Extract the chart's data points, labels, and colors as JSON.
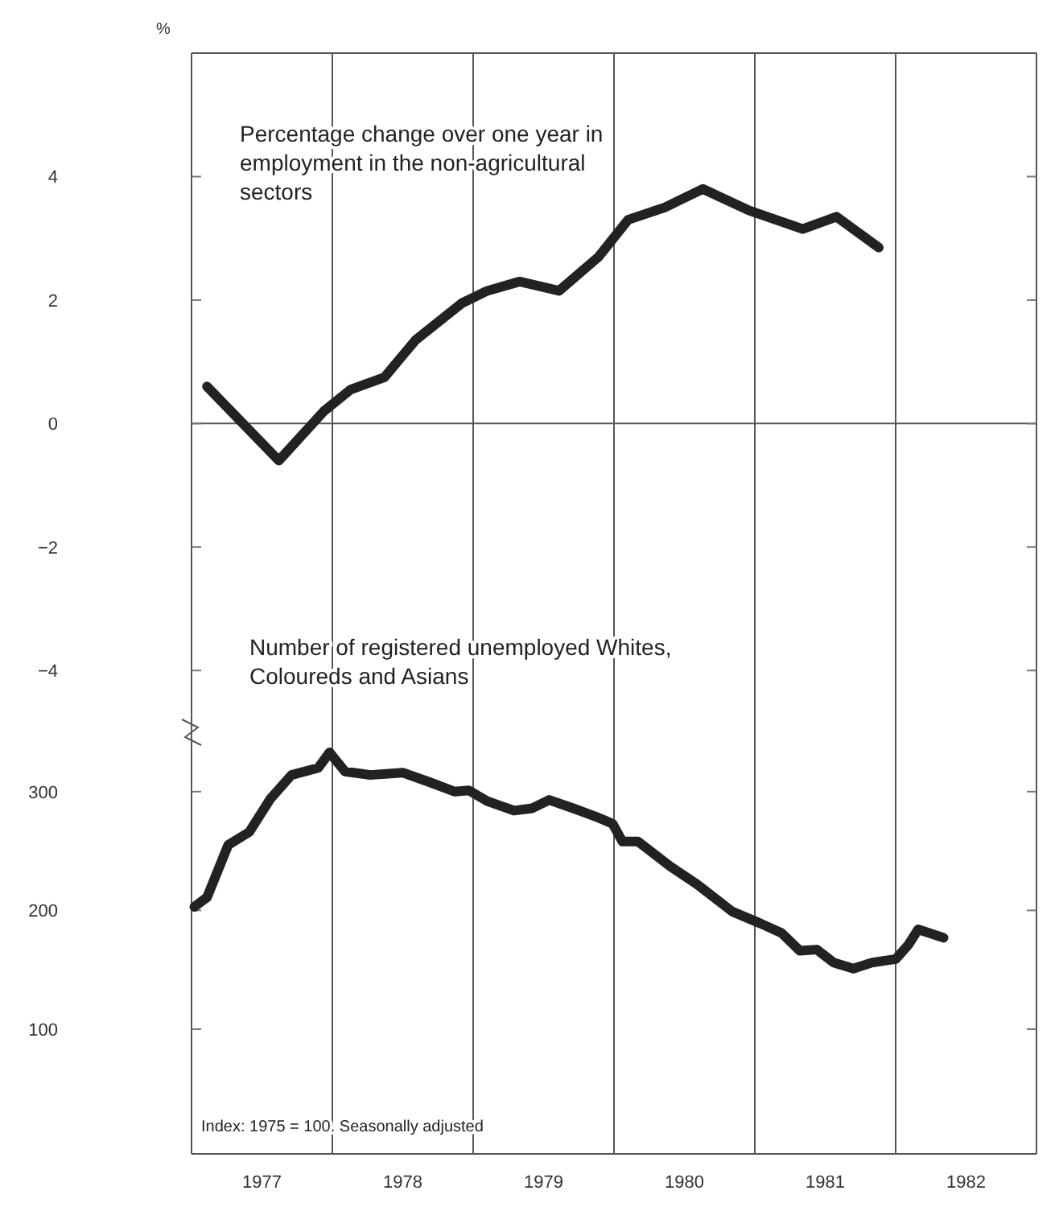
{
  "chart_data": [
    {
      "type": "line",
      "title": "Percentage change over one year in employment in the non-agricultural sectors",
      "ylabel": "%",
      "xlim": [
        1977,
        1983
      ],
      "ylim": [
        -5,
        6
      ],
      "yticks": [
        4,
        2,
        0,
        {
          "value": -2,
          "label": "−2"
        },
        {
          "value": -4,
          "label": "−4"
        }
      ],
      "tick_labels": "y",
      "grid": false,
      "ref_lines": [
        {
          "axis": "y",
          "value": 0
        },
        {
          "axis": "x",
          "value": 1978
        },
        {
          "axis": "x",
          "value": 1979
        },
        {
          "axis": "x",
          "value": 1980
        },
        {
          "axis": "x",
          "value": 1981
        },
        {
          "axis": "x",
          "value": 1982
        }
      ],
      "series": [
        {
          "color": "#222222",
          "x": [
            1977.11,
            1977.62,
            1977.94,
            1978.13,
            1978.37,
            1978.59,
            1978.92,
            1979.1,
            1979.33,
            1979.61,
            1979.89,
            1980.1,
            1980.36,
            1980.63,
            1980.96,
            1981.34,
            1981.58,
            1981.88
          ],
          "values": [
            0.6,
            -0.6,
            0.2,
            0.55,
            0.75,
            1.35,
            1.95,
            2.15,
            2.3,
            2.15,
            2.7,
            3.3,
            3.5,
            3.8,
            3.45,
            3.15,
            3.35,
            2.85
          ]
        }
      ]
    },
    {
      "type": "line",
      "title": "Number of registered unemployed Whites, Coloureds and Asians",
      "annotations": [
        "Index: 1975 = 100. Seasonally adjusted"
      ],
      "xlim": [
        1977,
        1983
      ],
      "xticks": [
        {
          "value": 1977.5,
          "label": "1977"
        },
        {
          "value": 1978.5,
          "label": "1978"
        },
        {
          "value": 1979.5,
          "label": "1979"
        },
        {
          "value": 1980.5,
          "label": "1980"
        },
        {
          "value": 1981.5,
          "label": "1981"
        },
        {
          "value": 1982.5,
          "label": "1982"
        }
      ],
      "ylim": [
        -5,
        350
      ],
      "yticks": [
        300,
        200,
        100
      ],
      "grid": false,
      "ref_lines": [
        {
          "axis": "x",
          "value": 1978
        },
        {
          "axis": "x",
          "value": 1979
        },
        {
          "axis": "x",
          "value": 1980
        },
        {
          "axis": "x",
          "value": 1981
        },
        {
          "axis": "x",
          "value": 1982
        }
      ],
      "series": [
        {
          "color": "#222222",
          "x": [
            1977.02,
            1977.11,
            1977.26,
            1977.41,
            1977.56,
            1977.71,
            1977.9,
            1977.98,
            1978.09,
            1978.27,
            1978.5,
            1978.69,
            1978.87,
            1978.97,
            1979.1,
            1979.29,
            1979.42,
            1979.54,
            1979.71,
            1979.87,
            1979.99,
            1980.06,
            1980.17,
            1980.4,
            1980.59,
            1980.84,
            1981.04,
            1981.19,
            1981.32,
            1981.44,
            1981.56,
            1981.7,
            1981.83,
            1982.0,
            1982.09,
            1982.16,
            1982.34
          ],
          "values": [
            203,
            211,
            255,
            266,
            294,
            314,
            320,
            333,
            317,
            314,
            316,
            308,
            300,
            301,
            292,
            284,
            286,
            293,
            286,
            279,
            273,
            258,
            258,
            237,
            222,
            199,
            189,
            181,
            166,
            167,
            156,
            151,
            156,
            159,
            171,
            184,
            177
          ]
        }
      ]
    }
  ]
}
